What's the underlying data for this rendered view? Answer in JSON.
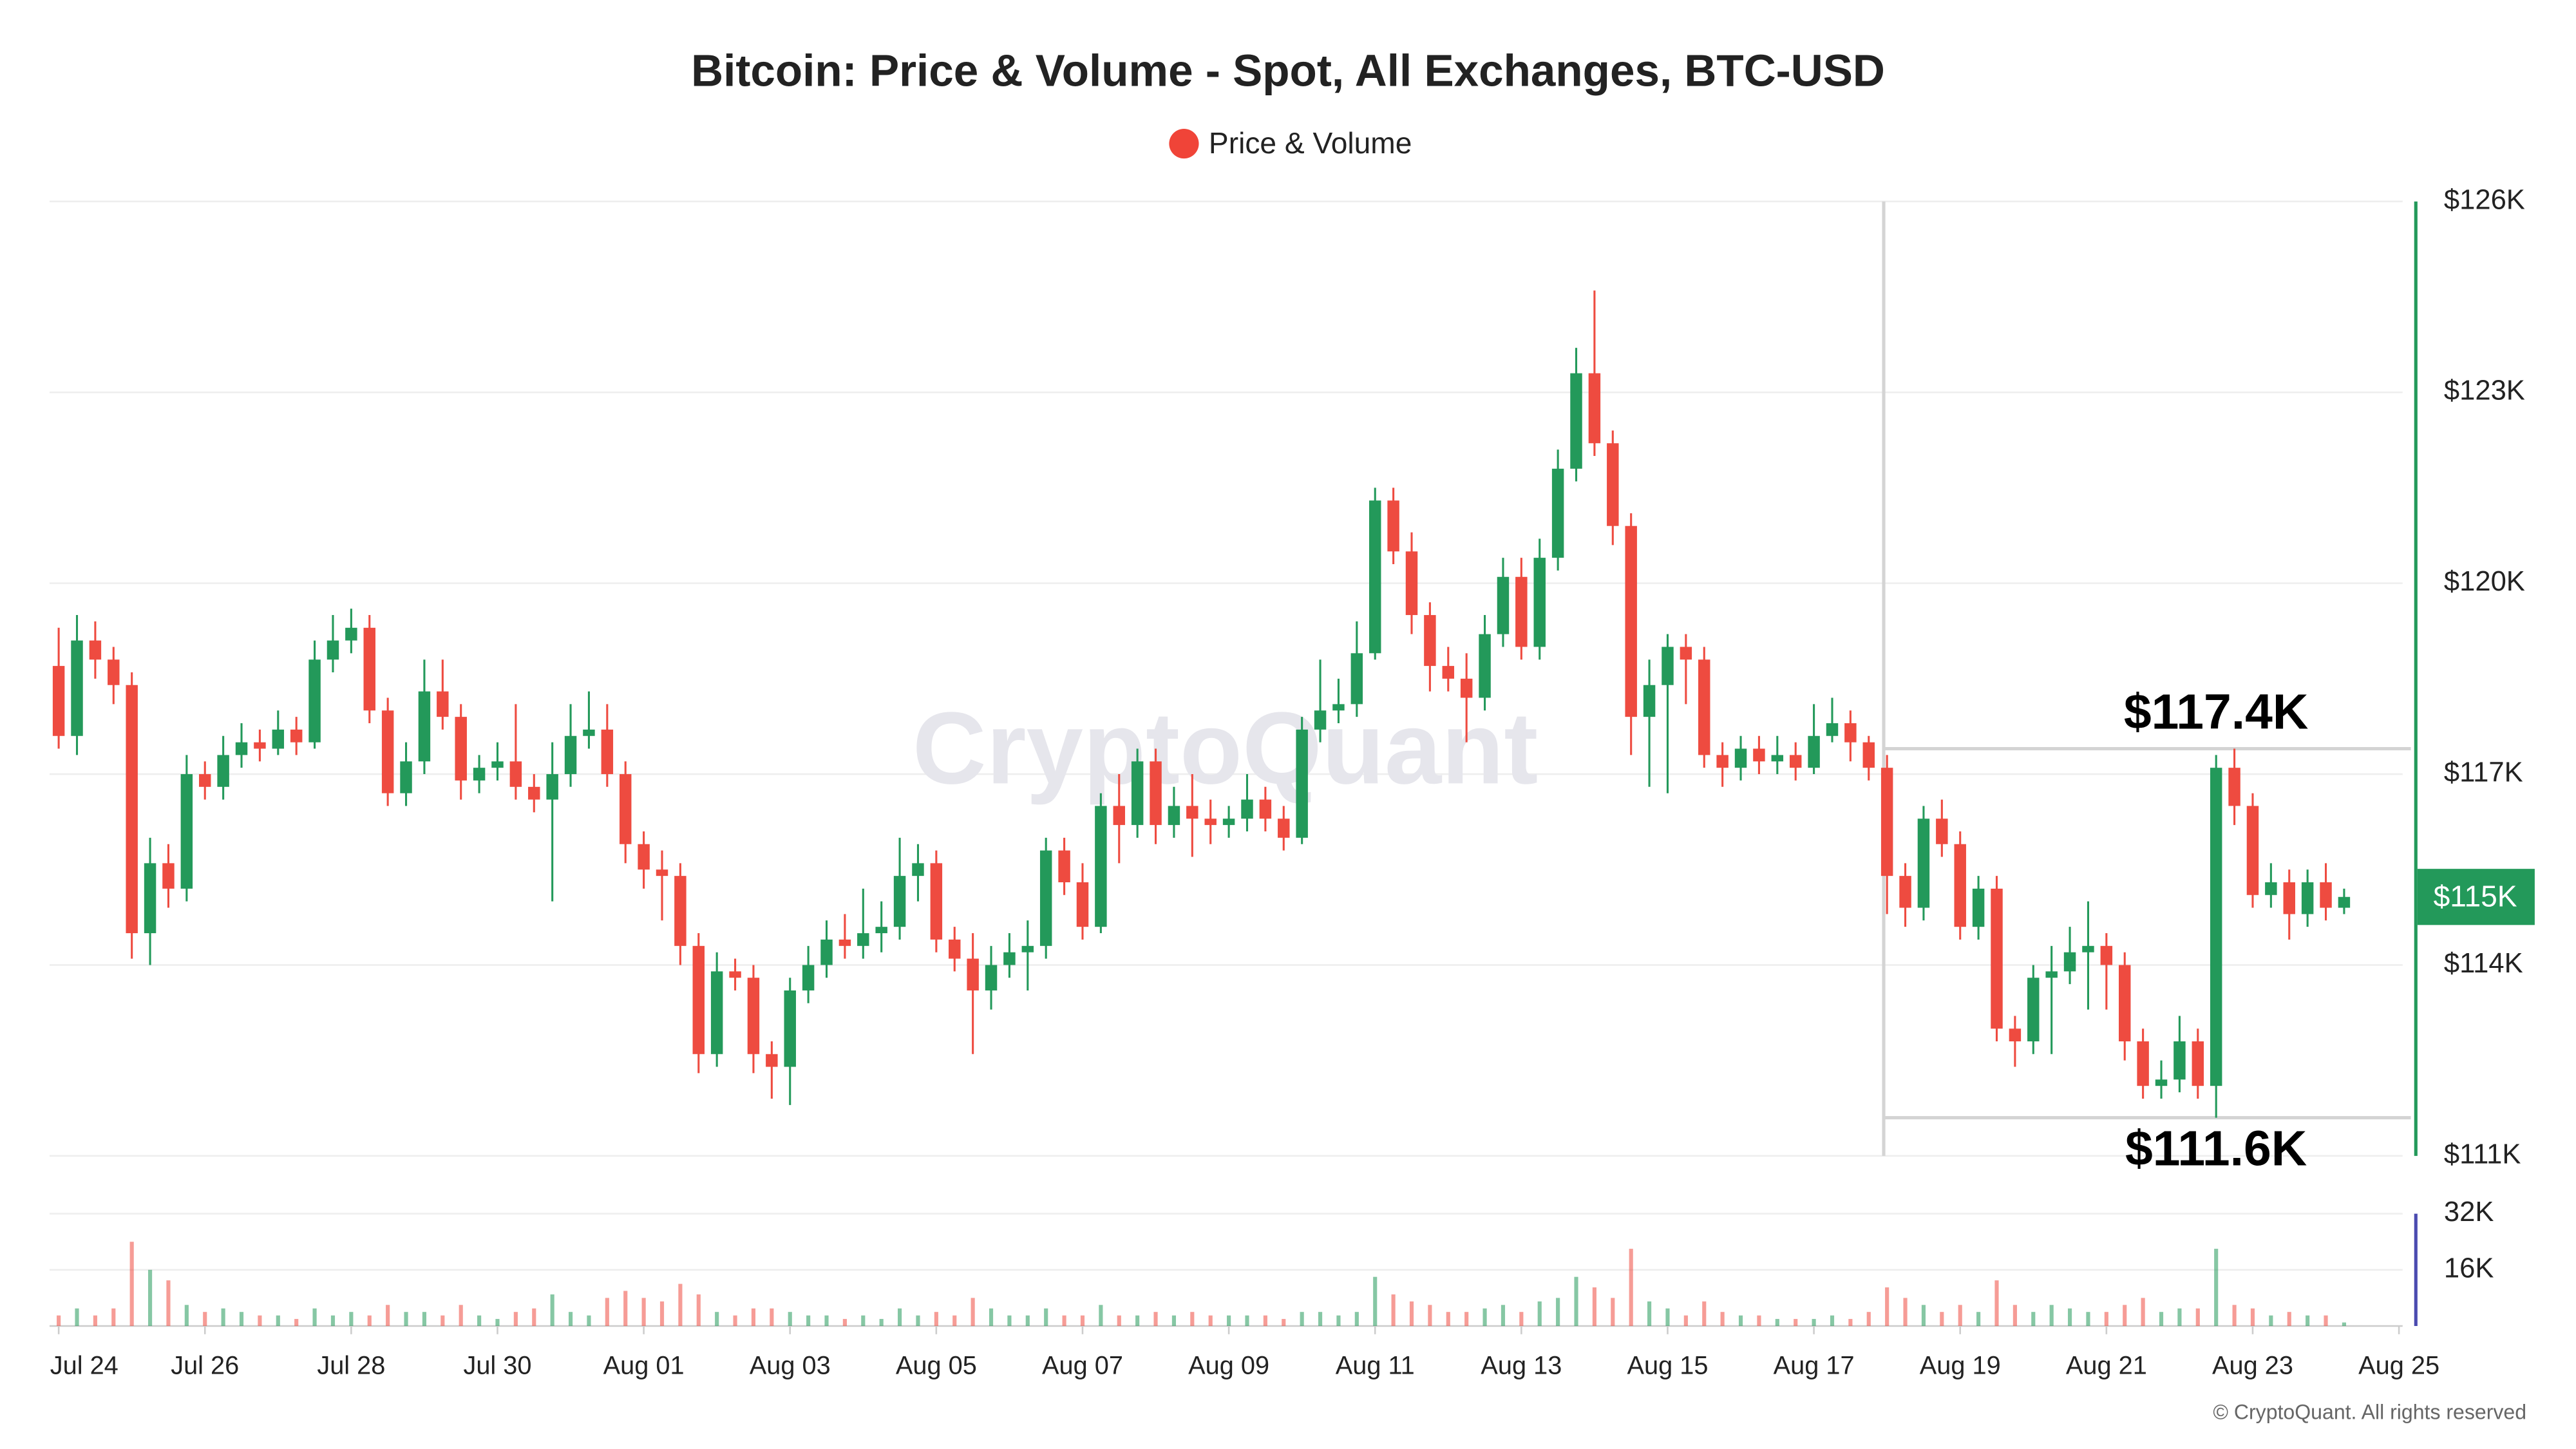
{
  "chart_data": {
    "type": "candlestick",
    "title": "Bitcoin: Price & Volume - Spot, All Exchanges, BTC-USD",
    "series": [
      {
        "name": "Price & Volume",
        "color": "#f04438",
        "up_color": "#23995a",
        "down_color": "#ee4b40",
        "open": [
          118700,
          117600,
          119100,
          118800,
          118400,
          114500,
          115600,
          115200,
          117000,
          116800,
          117300,
          117500,
          117400,
          117700,
          117500,
          118800,
          119100,
          119300,
          118000,
          116700,
          117200,
          118300,
          117900,
          116900,
          117100,
          117200,
          116800,
          116600,
          117000,
          117600,
          117700,
          117000,
          115900,
          115500,
          115400,
          114300,
          112600,
          113900,
          113800,
          112600,
          112400,
          113600,
          114000,
          114400,
          114300,
          114500,
          114600,
          115400,
          115600,
          114400,
          114100,
          113600,
          114000,
          114200,
          114300,
          115800,
          115300,
          114600,
          116500,
          116200,
          117200,
          116200,
          116500,
          116300,
          116200,
          116300,
          116600,
          116300,
          116000,
          117700,
          118000,
          118100,
          118900,
          121300,
          120500,
          119500,
          118700,
          118500,
          118200,
          119200,
          120100,
          119000,
          120400,
          121800,
          123300,
          122200,
          120900,
          117900,
          118400,
          119000,
          118800,
          117300,
          117100,
          117400,
          117200,
          117300,
          117100,
          117600,
          117800,
          117500,
          117100,
          115400,
          114900,
          116300,
          115900,
          114600,
          115200,
          113000,
          112800,
          113800,
          113900,
          114200,
          114300,
          114000,
          112800,
          112100,
          112200,
          112800,
          112100,
          117100,
          116500,
          115100,
          115300,
          114800,
          115300,
          114900
        ],
        "high": [
          119300,
          119500,
          119400,
          119000,
          118600,
          116000,
          115900,
          117300,
          117200,
          117600,
          117800,
          117700,
          118000,
          117900,
          119100,
          119500,
          119600,
          119500,
          118200,
          117500,
          118800,
          118800,
          118100,
          117300,
          117500,
          118100,
          117000,
          117500,
          118100,
          118300,
          118100,
          117200,
          116100,
          115800,
          115600,
          114500,
          114200,
          114100,
          114000,
          112800,
          113800,
          114300,
          114700,
          114800,
          115200,
          115000,
          116000,
          115900,
          115800,
          114600,
          114500,
          114300,
          114500,
          114700,
          116000,
          116000,
          115600,
          116700,
          117000,
          117400,
          117400,
          116800,
          117000,
          116600,
          116500,
          117000,
          116800,
          116500,
          117900,
          118800,
          118500,
          119400,
          121500,
          121500,
          120800,
          119700,
          119000,
          118900,
          119500,
          120400,
          120400,
          120700,
          122100,
          123700,
          124600,
          122400,
          121100,
          118800,
          119200,
          119200,
          119000,
          117500,
          117600,
          117600,
          117600,
          117500,
          118100,
          118200,
          118000,
          117600,
          117300,
          115600,
          116500,
          116600,
          116100,
          115400,
          115400,
          113200,
          114000,
          114300,
          114600,
          115000,
          114500,
          114200,
          113000,
          112500,
          113200,
          113000,
          117300,
          117400,
          116700,
          115600,
          115500,
          115500,
          115600,
          115200
        ],
        "low": [
          117400,
          117300,
          118500,
          118100,
          114100,
          114000,
          114900,
          115000,
          116600,
          116600,
          117100,
          117200,
          117300,
          117300,
          117400,
          118600,
          118900,
          117800,
          116500,
          116500,
          117000,
          117700,
          116600,
          116700,
          116900,
          116600,
          116400,
          115000,
          116800,
          117400,
          116800,
          115600,
          115200,
          114700,
          114000,
          112300,
          112400,
          113600,
          112300,
          111900,
          111800,
          113400,
          113800,
          114100,
          114100,
          114200,
          114400,
          115000,
          114200,
          113900,
          112600,
          113300,
          113800,
          113600,
          114100,
          115100,
          114400,
          114500,
          115600,
          116000,
          115900,
          116000,
          115700,
          115900,
          116000,
          116100,
          116100,
          115800,
          115900,
          117500,
          117800,
          117900,
          118800,
          120300,
          119200,
          118300,
          118300,
          117500,
          118000,
          119000,
          118800,
          118800,
          120200,
          121600,
          122000,
          120600,
          117300,
          116800,
          116700,
          118100,
          117100,
          116800,
          116900,
          117000,
          117000,
          116900,
          117000,
          117500,
          117200,
          116900,
          114800,
          114600,
          114700,
          115700,
          114400,
          114400,
          112800,
          112400,
          112600,
          112600,
          113700,
          113300,
          113300,
          112500,
          111900,
          111900,
          112000,
          111900,
          111600,
          116200,
          114900,
          114900,
          114400,
          114600,
          114700,
          114800
        ],
        "close": [
          117600,
          119100,
          118800,
          118400,
          114500,
          115600,
          115200,
          117000,
          116800,
          117300,
          117500,
          117400,
          117700,
          117500,
          118800,
          119100,
          119300,
          118000,
          116700,
          117200,
          118300,
          117900,
          116900,
          117100,
          117200,
          116800,
          116600,
          117000,
          117600,
          117700,
          117000,
          115900,
          115500,
          115400,
          114300,
          112600,
          113900,
          113800,
          112600,
          112400,
          113600,
          114000,
          114400,
          114300,
          114500,
          114600,
          115400,
          115600,
          114400,
          114100,
          113600,
          114000,
          114200,
          114300,
          115800,
          115300,
          114600,
          116500,
          116200,
          117200,
          116200,
          116500,
          116300,
          116200,
          116300,
          116600,
          116300,
          116000,
          117700,
          118000,
          118100,
          118900,
          121300,
          120500,
          119500,
          118700,
          118500,
          118200,
          119200,
          120100,
          119000,
          120400,
          121800,
          123300,
          122200,
          120900,
          117900,
          118400,
          119000,
          118800,
          117300,
          117100,
          117400,
          117200,
          117300,
          117100,
          117600,
          117800,
          117500,
          117100,
          115400,
          114900,
          116300,
          115900,
          114600,
          115200,
          113000,
          112800,
          113800,
          113900,
          114200,
          114300,
          114000,
          112800,
          112100,
          112200,
          112800,
          112100,
          117100,
          116500,
          115100,
          115300,
          114800,
          115300,
          114900,
          115070
        ],
        "volume": [
          3000,
          5000,
          3000,
          5000,
          24000,
          16000,
          13000,
          6000,
          4000,
          5000,
          4000,
          3000,
          3000,
          2000,
          5000,
          3000,
          4000,
          3000,
          6000,
          4000,
          4000,
          3000,
          6000,
          3000,
          2000,
          4000,
          5000,
          9000,
          4000,
          3000,
          8000,
          10000,
          8000,
          7000,
          12000,
          9000,
          4000,
          3000,
          5000,
          5000,
          4000,
          3000,
          3000,
          2000,
          3000,
          2000,
          5000,
          3000,
          4000,
          3000,
          8000,
          5000,
          3000,
          3000,
          5000,
          3000,
          3000,
          6000,
          3000,
          3000,
          4000,
          3000,
          4000,
          3000,
          3000,
          3000,
          3000,
          2000,
          4000,
          4000,
          3000,
          4000,
          14000,
          9000,
          7000,
          6000,
          4000,
          4000,
          5000,
          6000,
          4000,
          7000,
          8000,
          14000,
          11000,
          8000,
          22000,
          7000,
          5000,
          3000,
          7000,
          4000,
          3000,
          3000,
          2000,
          2000,
          2000,
          3000,
          2000,
          4000,
          11000,
          8000,
          6000,
          4000,
          6000,
          4000,
          13000,
          6000,
          4000,
          6000,
          5000,
          4000,
          4000,
          6000,
          8000,
          4000,
          5000,
          5000,
          22000,
          6000,
          5000,
          3000,
          4000,
          3000,
          3000,
          1000
        ]
      }
    ],
    "ylim": [
      111000,
      126000
    ],
    "yticks": [
      {
        "value": 111000,
        "label": "$111K"
      },
      {
        "value": 114000,
        "label": "$114K"
      },
      {
        "value": 117000,
        "label": "$117K"
      },
      {
        "value": 120000,
        "label": "$120K"
      },
      {
        "value": 123000,
        "label": "$123K"
      },
      {
        "value": 126000,
        "label": "$126K"
      }
    ],
    "y2lim": [
      0,
      32000
    ],
    "y2ticks": [
      {
        "value": 16000,
        "label": "16K"
      },
      {
        "value": 32000,
        "label": "32K"
      }
    ],
    "xlim": [
      -0.5,
      128.2
    ],
    "xticks": [
      {
        "value": 0,
        "label": "Jul 24"
      },
      {
        "value": 8,
        "label": "Jul 26"
      },
      {
        "value": 16,
        "label": "Jul 28"
      },
      {
        "value": 24,
        "label": "Jul 30"
      },
      {
        "value": 32,
        "label": "Aug 01"
      },
      {
        "value": 40,
        "label": "Aug 03"
      },
      {
        "value": 48,
        "label": "Aug 05"
      },
      {
        "value": 56,
        "label": "Aug 07"
      },
      {
        "value": 64,
        "label": "Aug 09"
      },
      {
        "value": 72,
        "label": "Aug 11"
      },
      {
        "value": 80,
        "label": "Aug 13"
      },
      {
        "value": 88,
        "label": "Aug 15"
      },
      {
        "value": 96,
        "label": "Aug 17"
      },
      {
        "value": 104,
        "label": "Aug 19"
      },
      {
        "value": 112,
        "label": "Aug 21"
      },
      {
        "value": 120,
        "label": "Aug 23"
      },
      {
        "value": 128,
        "label": "Aug 25"
      }
    ],
    "grid": true,
    "annotations": [
      {
        "label": "$117.4K",
        "value": 117400
      },
      {
        "label": "$111.6K",
        "value": 111600
      }
    ],
    "last_price_label": "$115K",
    "watermark": "CryptoQuant",
    "copyright": "© CryptoQuant. All rights reserved"
  }
}
